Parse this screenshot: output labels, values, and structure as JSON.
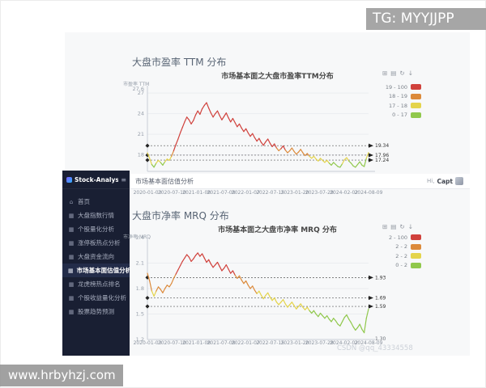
{
  "watermarks": {
    "tg": "TG: MYYJJPP",
    "site": "www.hrbyhzj.com",
    "csdn": "CSDN @qq_43334558"
  },
  "header": {
    "breadcrumb": "市场基本面估值分析",
    "user_greeting": "Hi,",
    "user_name": "Capt"
  },
  "sidebar": {
    "app_name": "Stock-Analysis",
    "collapse_icon": "hamburger",
    "items": [
      {
        "label": "首页",
        "icon": "home",
        "active": false
      },
      {
        "label": "大盘指数行情",
        "icon": "bar-chart",
        "active": false
      },
      {
        "label": "个股量化分析",
        "icon": "bar-chart",
        "active": false
      },
      {
        "label": "涨停板热点分析",
        "icon": "bar-chart",
        "active": false
      },
      {
        "label": "大盘资金流向",
        "icon": "bar-chart",
        "active": false
      },
      {
        "label": "市场基本面估值分析",
        "icon": "bar-chart",
        "active": true
      },
      {
        "label": "龙虎榜热点排名",
        "icon": "bar-chart",
        "active": false
      },
      {
        "label": "个股收益量化分析",
        "icon": "bar-chart",
        "active": false
      },
      {
        "label": "股票趋势预测",
        "icon": "bar-chart",
        "active": false
      }
    ]
  },
  "sections": [
    {
      "heading": "大盘市盈率 TTM 分布"
    },
    {
      "heading": "大盘市净率 MRQ 分布"
    }
  ],
  "toolbox_icons": [
    "data-zoom",
    "data-view",
    "restore",
    "save-image"
  ],
  "chart_data": [
    {
      "type": "line",
      "title": "市场基本面之大盘市盈率TTM分布",
      "ylabel": "市盈率 TTM",
      "ylim": [
        15.6,
        27.6
      ],
      "yticks": [
        27.6,
        27,
        24,
        21,
        18
      ],
      "x_labels": [
        "2020-01-03",
        "2020-07-10",
        "2021-01-08",
        "2021-07-08",
        "2022-01-07",
        "2022-07-15",
        "2023-01-20",
        "2023-07-28",
        "2024-02-02",
        "2024-08-09"
      ],
      "legend": [
        {
          "label": "19 - 100",
          "color": "#d0413c"
        },
        {
          "label": "18 - 19",
          "color": "#dc8a3b"
        },
        {
          "label": "17 - 18",
          "color": "#e4d44b"
        },
        {
          "label": "0 - 17",
          "color": "#90c84c"
        }
      ],
      "thresholds": [
        19,
        18,
        17
      ],
      "markers": [
        19.34,
        17.96,
        17.24
      ],
      "marker_labels": [
        "19.34",
        "17.96",
        "17.24"
      ],
      "values": [
        18.3,
        17.5,
        16.6,
        16.2,
        16.8,
        17.2,
        16.9,
        16.5,
        17.0,
        17.4,
        17.2,
        17.8,
        18.6,
        19.5,
        20.3,
        21.2,
        22.0,
        22.8,
        23.5,
        23.1,
        22.5,
        23.0,
        23.8,
        24.4,
        23.9,
        24.7,
        25.2,
        25.6,
        24.8,
        24.1,
        23.5,
        24.0,
        24.4,
        23.7,
        23.1,
        23.6,
        24.1,
        23.4,
        22.8,
        23.3,
        22.7,
        22.1,
        22.5,
        21.9,
        21.4,
        21.8,
        21.2,
        20.7,
        21.1,
        20.5,
        20.0,
        20.4,
        19.8,
        19.4,
        19.9,
        20.3,
        19.7,
        19.2,
        19.6,
        19.0,
        18.6,
        18.9,
        19.3,
        18.7,
        18.3,
        18.6,
        19.0,
        18.5,
        18.1,
        18.4,
        18.8,
        18.3,
        17.9,
        18.2,
        17.8,
        17.5,
        17.8,
        17.4,
        17.1,
        17.5,
        17.2,
        16.9,
        17.2,
        16.8,
        16.5,
        16.9,
        16.6,
        16.3,
        16.2,
        16.7,
        17.3,
        17.6,
        17.1,
        16.8,
        16.4,
        16.2,
        16.6,
        17.0,
        16.5,
        16.3,
        17.5,
        18.34
      ]
    },
    {
      "type": "line",
      "title": "市场基本面之大盘市净率 MRQ 分布",
      "ylabel": "市净率 MRQ",
      "ylim": [
        1.2,
        2.4
      ],
      "yticks": [
        2.4,
        2.1,
        1.8,
        1.5,
        1.2
      ],
      "x_labels": [
        "2020-01-03",
        "2020-07-10",
        "2021-01-08",
        "2021-07-08",
        "2022-01-07",
        "2022-07-15",
        "2023-01-20",
        "2023-07-28",
        "2024-02-02",
        "2024-08-09"
      ],
      "legend": [
        {
          "label": "2 - 100",
          "color": "#d0413c"
        },
        {
          "label": "2 - 2",
          "color": "#dc8a3b"
        },
        {
          "label": "2 - 2",
          "color": "#e4d44b"
        },
        {
          "label": "0 - 2",
          "color": "#90c84c"
        }
      ],
      "thresholds": [
        1.96,
        1.76,
        1.55
      ],
      "markers": [
        1.93,
        1.69,
        1.59
      ],
      "marker_labels": [
        "1.93",
        "1.69",
        "1.59"
      ],
      "min_label": "1.30",
      "values": [
        1.98,
        1.89,
        1.77,
        1.71,
        1.77,
        1.82,
        1.79,
        1.75,
        1.8,
        1.84,
        1.82,
        1.86,
        1.92,
        1.97,
        2.02,
        2.07,
        2.12,
        2.16,
        2.2,
        2.17,
        2.12,
        2.15,
        2.19,
        2.22,
        2.18,
        2.21,
        2.16,
        2.11,
        2.14,
        2.09,
        2.05,
        2.08,
        2.11,
        2.06,
        2.01,
        2.04,
        2.08,
        2.03,
        1.98,
        2.01,
        1.96,
        1.92,
        1.95,
        1.9,
        1.86,
        1.89,
        1.84,
        1.8,
        1.83,
        1.78,
        1.74,
        1.77,
        1.72,
        1.68,
        1.72,
        1.75,
        1.7,
        1.66,
        1.69,
        1.64,
        1.61,
        1.64,
        1.67,
        1.62,
        1.58,
        1.61,
        1.64,
        1.6,
        1.56,
        1.59,
        1.62,
        1.58,
        1.55,
        1.58,
        1.54,
        1.51,
        1.54,
        1.5,
        1.47,
        1.51,
        1.48,
        1.45,
        1.48,
        1.44,
        1.41,
        1.45,
        1.42,
        1.38,
        1.36,
        1.41,
        1.46,
        1.49,
        1.44,
        1.4,
        1.35,
        1.31,
        1.34,
        1.38,
        1.32,
        1.28,
        1.45,
        1.56
      ]
    }
  ]
}
